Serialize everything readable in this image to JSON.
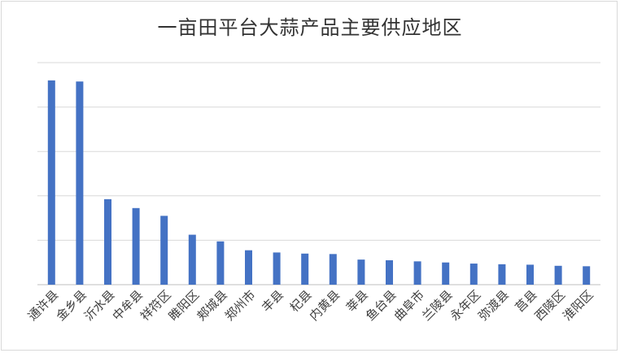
{
  "chart_data": {
    "type": "bar",
    "title": "一亩田平台大蒜产品主要供应地区",
    "xlabel": "",
    "ylabel": "",
    "ylim": [
      0,
      100
    ],
    "grid": true,
    "bar_color": "#4472c4",
    "categories": [
      "通许县",
      "金乡县",
      "沂水县",
      "中牟县",
      "祥符区",
      "睢阳区",
      "郏城县",
      "郑州市",
      "丰县",
      "杞县",
      "内黄县",
      "莘县",
      "鱼台县",
      "曲阜市",
      "兰陵县",
      "永年区",
      "弥渡县",
      "莒县",
      "西陵区",
      "淮阳区"
    ],
    "series": [
      {
        "values": [
          92,
          91.5,
          38.5,
          34.5,
          31,
          22.5,
          19.5,
          15.5,
          14.5,
          14,
          13.8,
          11.3,
          11,
          10.5,
          10,
          9.5,
          9.2,
          9,
          8.5,
          8.3
        ]
      }
    ]
  }
}
